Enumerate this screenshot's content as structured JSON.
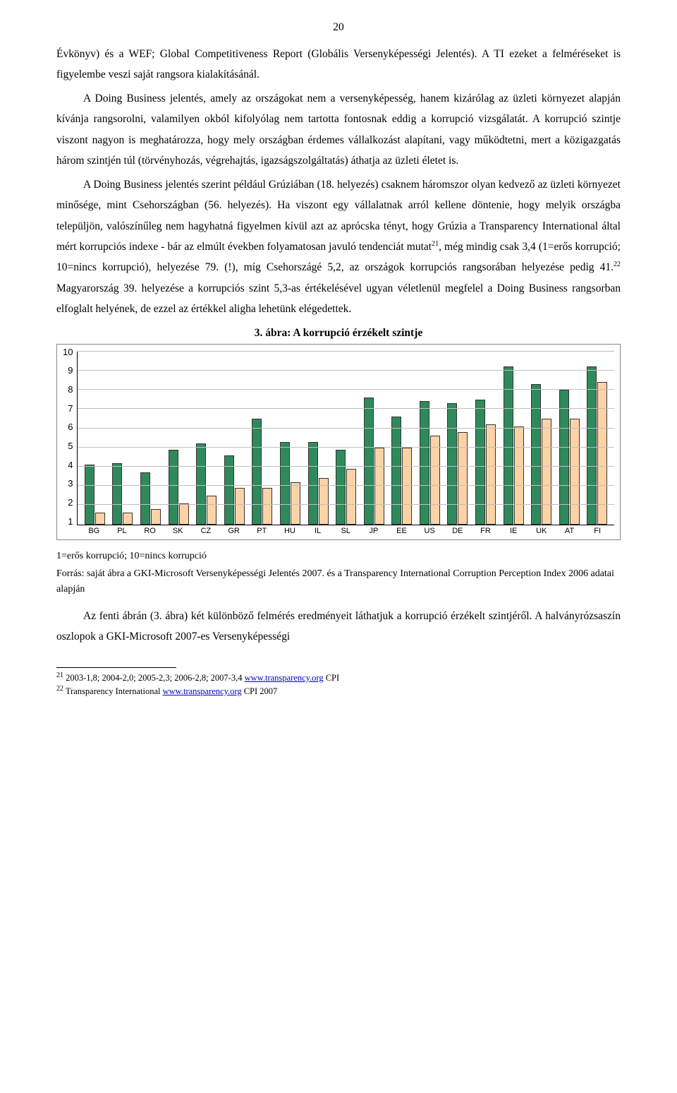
{
  "page_number": "20",
  "paragraphs": {
    "p1": "Évkönyv) és a WEF; Global Competitiveness Report (Globális Versenyképességi Jelentés). A TI ezeket a felméréseket is figyelembe veszi saját rangsora kialakításánál.",
    "p2_a": "A Doing Business jelentés, amely az országokat nem a versenyképesség, hanem kizárólag az üzleti környezet alapján kívánja rangsorolni, valamilyen okból kifolyólag nem tartotta fontosnak eddig a korrupció vizsgálatát. A korrupció szintje viszont nagyon is meghatározza, hogy mely országban érdemes vállalkozást alapítani, vagy működtetni, mert a közigazgatás három szintjén túl (törvényhozás, végrehajtás, igazságszolgáltatás) áthatja az üzleti életet is.",
    "p3_a": "A Doing Business jelentés szerint például Grúziában (18. helyezés) csaknem háromszor olyan kedvező az üzleti környezet minősége, mint Csehországban (56. helyezés). Ha viszont egy vállalatnak arról kellene döntenie, hogy melyik országba települjön, valószínűleg nem hagyhatná figyelmen kívül azt az aprócska tényt, hogy Grúzia a Transparency International által mért korrupciós indexe - bár az elmúlt években folyamatosan javuló tendenciát mutat",
    "p3_sup1": "21",
    "p3_b": ", még mindig csak 3,4 (1=erős korrupció; 10=nincs korrupció), helyezése 79. (!), míg Csehországé 5,2, az országok korrupciós rangsorában helyezése pedig 41.",
    "p3_sup2": "22",
    "p3_c": " Magyarország 39. helyezése a korrupciós szint 5,3-as értékelésével ugyan véletlenül megfelel a Doing Business rangsorban elfoglalt helyének, de ezzel az értékkel aligha lehetünk elégedettek."
  },
  "chart": {
    "title": "3. ábra: A korrupció érzékelt szintje",
    "type": "bar",
    "ylim_min": 1,
    "ylim_max": 10,
    "yticks": [
      "10",
      "9",
      "8",
      "7",
      "6",
      "5",
      "4",
      "3",
      "2",
      "1"
    ],
    "bar_colors": {
      "series1": "#2f8a5b",
      "series2": "#fcd3a7"
    },
    "border_color": "#333333",
    "grid_color": "#bfbfbf",
    "background": "#ffffff",
    "categories": [
      "BG",
      "PL",
      "RO",
      "SK",
      "CZ",
      "GR",
      "PT",
      "HU",
      "IL",
      "SL",
      "JP",
      "EE",
      "US",
      "DE",
      "FR",
      "IE",
      "UK",
      "AT",
      "FI"
    ],
    "series1": [
      4.1,
      4.2,
      3.7,
      4.9,
      5.2,
      4.6,
      6.5,
      5.3,
      5.3,
      4.9,
      7.6,
      6.6,
      7.4,
      7.3,
      7.5,
      9.2,
      8.3,
      8.0,
      9.2
    ],
    "series2": [
      1.6,
      1.6,
      1.8,
      2.1,
      2.5,
      2.9,
      2.9,
      3.2,
      3.4,
      3.9,
      5.0,
      5.0,
      5.6,
      5.8,
      6.2,
      6.1,
      6.5,
      6.5,
      8.4
    ]
  },
  "caption": {
    "line1": "1=erős korrupció; 10=nincs korrupció",
    "line2_a": "Forrás: saját ábra a GKI-Microsoft Versenyképességi Jelentés 2007. és a Transparency International Corruption Perception Index 2006 adatai alapján"
  },
  "closing": "Az fenti ábrán (3. ábra) két különböző felmérés eredményeit láthatjuk a korrupció érzékelt szintjéről. A halványrózsaszín oszlopok a GKI-Microsoft 2007-es Versenyképességi",
  "footnotes": {
    "f21_num": "21",
    "f21_text_a": " 2003-1,8; 2004-2,0; 2005-2,3; 2006-2,8; 2007-3,4 ",
    "f21_link": "www.transparency.org",
    "f21_text_b": " CPI",
    "f22_num": "22",
    "f22_text_a": " Transparency International ",
    "f22_link": "www.transparency.org",
    "f22_text_b": " CPI 2007"
  }
}
